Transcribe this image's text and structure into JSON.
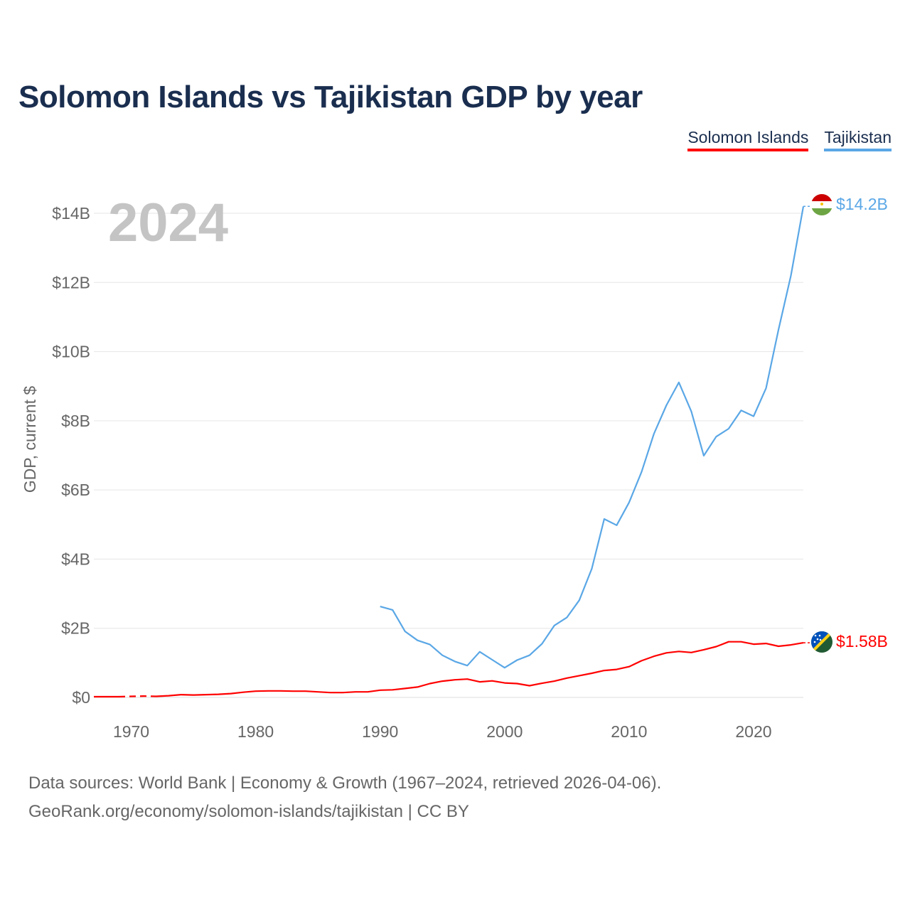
{
  "title": "Solomon Islands vs Tajikistan GDP by year",
  "year_label": "2024",
  "footer": {
    "line1": "Data sources: World Bank | Economy & Growth (1967–2024, retrieved 2026-04-06).",
    "line2": "GeoRank.org/economy/solomon-islands/tajikistan | CC BY"
  },
  "colors": {
    "solomon": "#ff0000",
    "tajikistan": "#5aa7e6",
    "title": "#1a2e4f",
    "grid": "#e6e6e6",
    "axis_text": "#666666",
    "year_watermark": "#c4c4c4"
  },
  "chart_data": {
    "type": "line",
    "ylabel": "GDP, current $",
    "xlim": [
      1967,
      2024
    ],
    "ylim": [
      0,
      14
    ],
    "y_unit": "billion US$",
    "x_ticks": [
      1970,
      1980,
      1990,
      2000,
      2010,
      2020
    ],
    "y_ticks": [
      {
        "value": 0,
        "label": "$0"
      },
      {
        "value": 2,
        "label": "$2B"
      },
      {
        "value": 4,
        "label": "$4B"
      },
      {
        "value": 6,
        "label": "$6B"
      },
      {
        "value": 8,
        "label": "$8B"
      },
      {
        "value": 10,
        "label": "$10B"
      },
      {
        "value": 12,
        "label": "$12B"
      },
      {
        "value": 14,
        "label": "$14B"
      }
    ],
    "grid": true,
    "legend_position": "top-right",
    "series": [
      {
        "name": "Solomon Islands",
        "key": "solomon",
        "end_label": "$1.58B",
        "flag_icon": "solomon-islands-flag-icon",
        "dashed_x": [
          1969,
          1972
        ],
        "x": [
          1967,
          1968,
          1969,
          1970,
          1971,
          1972,
          1973,
          1974,
          1975,
          1976,
          1977,
          1978,
          1979,
          1980,
          1981,
          1982,
          1983,
          1984,
          1985,
          1986,
          1987,
          1988,
          1989,
          1990,
          1991,
          1992,
          1993,
          1994,
          1995,
          1996,
          1997,
          1998,
          1999,
          2000,
          2001,
          2002,
          2003,
          2004,
          2005,
          2006,
          2007,
          2008,
          2009,
          2010,
          2011,
          2012,
          2013,
          2014,
          2015,
          2016,
          2017,
          2018,
          2019,
          2020,
          2021,
          2022,
          2023,
          2024
        ],
        "values": [
          0.02,
          0.02,
          0.02,
          0.03,
          0.04,
          0.03,
          0.05,
          0.08,
          0.07,
          0.08,
          0.09,
          0.11,
          0.15,
          0.18,
          0.19,
          0.19,
          0.18,
          0.18,
          0.16,
          0.14,
          0.14,
          0.16,
          0.16,
          0.21,
          0.22,
          0.26,
          0.3,
          0.4,
          0.47,
          0.51,
          0.53,
          0.45,
          0.48,
          0.42,
          0.4,
          0.34,
          0.41,
          0.47,
          0.56,
          0.63,
          0.7,
          0.78,
          0.81,
          0.89,
          1.06,
          1.19,
          1.29,
          1.33,
          1.3,
          1.38,
          1.47,
          1.61,
          1.61,
          1.54,
          1.56,
          1.48,
          1.52,
          1.58
        ]
      },
      {
        "name": "Tajikistan",
        "key": "tajikistan",
        "end_label": "$14.2B",
        "flag_icon": "tajikistan-flag-icon",
        "x": [
          1990,
          1991,
          1992,
          1993,
          1994,
          1995,
          1996,
          1997,
          1998,
          1999,
          2000,
          2001,
          2002,
          2003,
          2004,
          2005,
          2006,
          2007,
          2008,
          2009,
          2010,
          2011,
          2012,
          2013,
          2014,
          2015,
          2016,
          2017,
          2018,
          2019,
          2020,
          2021,
          2022,
          2023,
          2024
        ],
        "values": [
          2.63,
          2.53,
          1.91,
          1.65,
          1.53,
          1.22,
          1.04,
          0.92,
          1.32,
          1.09,
          0.86,
          1.08,
          1.22,
          1.55,
          2.08,
          2.31,
          2.81,
          3.72,
          5.16,
          4.98,
          5.64,
          6.52,
          7.63,
          8.45,
          9.11,
          8.27,
          6.99,
          7.54,
          7.77,
          8.3,
          8.13,
          8.94,
          10.63,
          12.2,
          14.2
        ]
      }
    ]
  }
}
